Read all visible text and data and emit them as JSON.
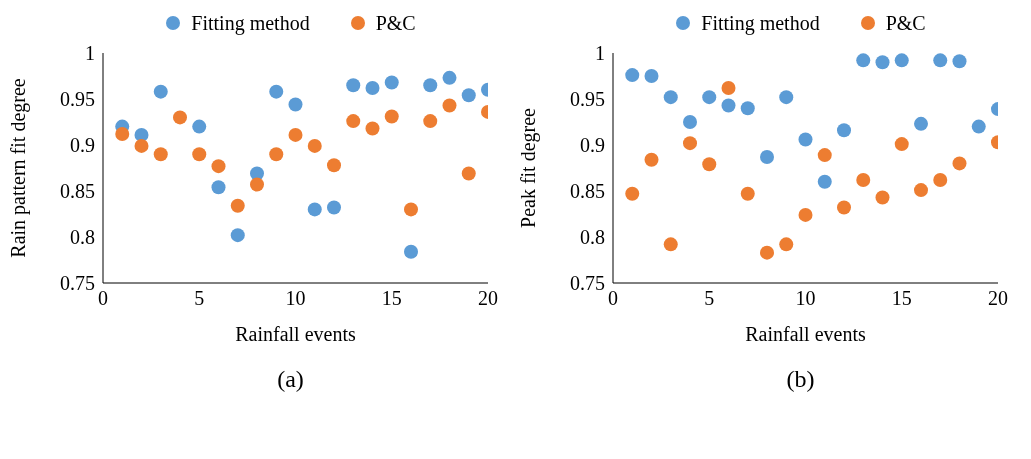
{
  "chart_data": [
    {
      "type": "scatter",
      "xlabel": "Rainfall events",
      "ylabel": "Rain pattern fit degree",
      "x": [
        1,
        2,
        3,
        4,
        5,
        6,
        7,
        8,
        9,
        10,
        11,
        12,
        13,
        14,
        15,
        16,
        17,
        18,
        19,
        20
      ],
      "xlim": [
        0,
        20
      ],
      "xticks": [
        0,
        5,
        10,
        15,
        20
      ],
      "ylim": [
        0.75,
        1
      ],
      "yticks": [
        0.75,
        0.8,
        0.85,
        0.9,
        0.95,
        1
      ],
      "legend": "top",
      "marker": "circle",
      "annotations": [
        "(a)"
      ],
      "series": [
        {
          "name": "Fitting method",
          "color": "#5b9bd5",
          "values": [
            0.92,
            0.911,
            0.958,
            null,
            0.92,
            0.854,
            0.802,
            0.869,
            0.958,
            0.944,
            0.83,
            0.832,
            0.965,
            0.962,
            0.968,
            0.784,
            0.965,
            0.973,
            0.954,
            0.96
          ]
        },
        {
          "name": "P&C",
          "color": "#ed7d31",
          "values": [
            0.912,
            0.899,
            0.89,
            0.93,
            0.89,
            0.877,
            0.834,
            0.857,
            0.89,
            0.911,
            0.899,
            0.878,
            0.926,
            0.918,
            0.931,
            0.83,
            0.926,
            0.943,
            0.869,
            0.936
          ]
        }
      ]
    },
    {
      "type": "scatter",
      "xlabel": "Rainfall events",
      "ylabel": "Peak fit degree",
      "x": [
        1,
        2,
        3,
        4,
        5,
        6,
        7,
        8,
        9,
        10,
        11,
        12,
        13,
        14,
        15,
        16,
        17,
        18,
        19,
        20
      ],
      "xlim": [
        0,
        20
      ],
      "xticks": [
        0,
        5,
        10,
        15,
        20
      ],
      "ylim": [
        0.75,
        1
      ],
      "yticks": [
        0.75,
        0.8,
        0.85,
        0.9,
        0.95,
        1
      ],
      "legend": "top",
      "marker": "circle",
      "annotations": [
        "(b)"
      ],
      "series": [
        {
          "name": "Fitting method",
          "color": "#5b9bd5",
          "values": [
            0.976,
            0.975,
            0.952,
            0.925,
            0.952,
            0.943,
            0.94,
            0.887,
            0.952,
            0.906,
            0.86,
            0.916,
            0.992,
            0.99,
            0.992,
            0.923,
            0.992,
            0.991,
            0.92,
            0.939
          ]
        },
        {
          "name": "P&C",
          "color": "#ed7d31",
          "values": [
            0.847,
            0.884,
            0.792,
            0.902,
            0.879,
            0.962,
            0.847,
            0.783,
            0.792,
            0.824,
            0.889,
            0.832,
            0.862,
            0.843,
            0.901,
            0.851,
            0.862,
            0.88,
            null,
            0.903
          ]
        }
      ]
    }
  ]
}
